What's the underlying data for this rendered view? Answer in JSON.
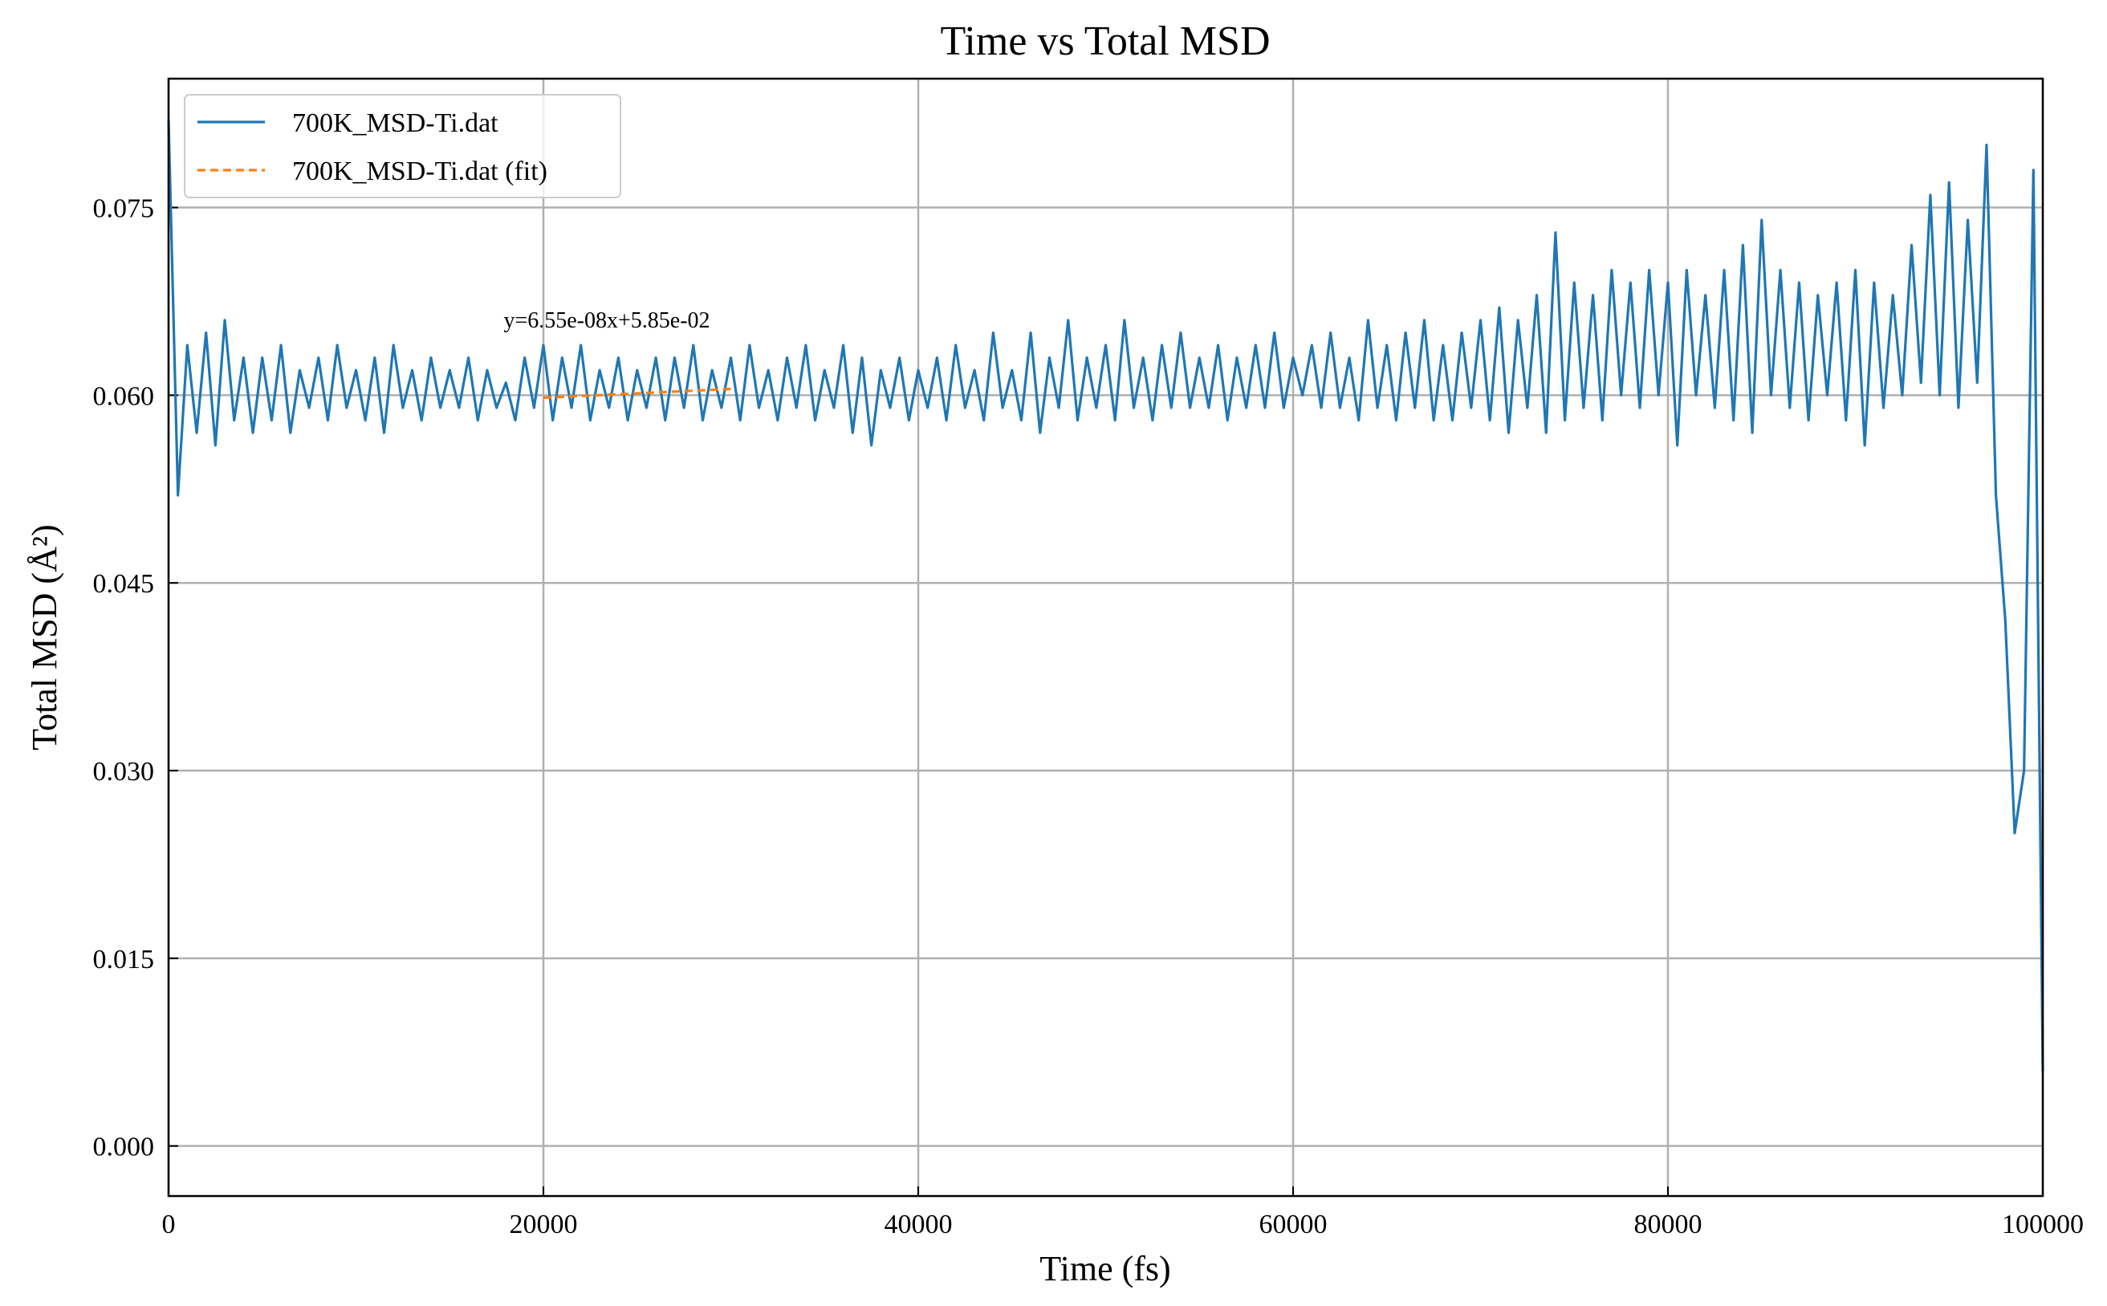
{
  "chart_data": {
    "type": "line",
    "title": "Time vs Total MSD",
    "xlabel": "Time (fs)",
    "ylabel": "Total MSD (Å²)",
    "annotation": "y=6.55e-08x+5.85e-02",
    "xlim": [
      0,
      100000
    ],
    "ylim": [
      -0.004,
      0.0853
    ],
    "xticks": [
      0,
      20000,
      40000,
      60000,
      80000,
      100000
    ],
    "yticks": [
      {
        "value": 0,
        "label": "0.000"
      },
      {
        "value": 0.015,
        "label": "0.015"
      },
      {
        "value": 0.03,
        "label": "0.030"
      },
      {
        "value": 0.045,
        "label": "0.045"
      },
      {
        "value": 0.06,
        "label": "0.060"
      },
      {
        "value": 0.075,
        "label": "0.075"
      }
    ],
    "grid": true,
    "legend": "upper left",
    "series": [
      {
        "name": "700K_MSD-Ti.dat",
        "color": "#1f77b4",
        "style": "solid",
        "x": [
          0,
          500,
          1000,
          1500,
          2000,
          2500,
          3000,
          3500,
          4000,
          4500,
          5000,
          5500,
          6000,
          6500,
          7000,
          7500,
          8000,
          8500,
          9000,
          9500,
          10000,
          10500,
          11000,
          11500,
          12000,
          12500,
          13000,
          13500,
          14000,
          14500,
          15000,
          15500,
          16000,
          16500,
          17000,
          17500,
          18000,
          18500,
          19000,
          19500,
          20000,
          20500,
          21000,
          21500,
          22000,
          22500,
          23000,
          23500,
          24000,
          24500,
          25000,
          25500,
          26000,
          26500,
          27000,
          27500,
          28000,
          28500,
          29000,
          29500,
          30000,
          30500,
          31000,
          31500,
          32000,
          32500,
          33000,
          33500,
          34000,
          34500,
          35000,
          35500,
          36000,
          36500,
          37000,
          37500,
          38000,
          38500,
          39000,
          39500,
          40000,
          40500,
          41000,
          41500,
          42000,
          42500,
          43000,
          43500,
          44000,
          44500,
          45000,
          45500,
          46000,
          46500,
          47000,
          47500,
          48000,
          48500,
          49000,
          49500,
          50000,
          50500,
          51000,
          51500,
          52000,
          52500,
          53000,
          53500,
          54000,
          54500,
          55000,
          55500,
          56000,
          56500,
          57000,
          57500,
          58000,
          58500,
          59000,
          59500,
          60000,
          60500,
          61000,
          61500,
          62000,
          62500,
          63000,
          63500,
          64000,
          64500,
          65000,
          65500,
          66000,
          66500,
          67000,
          67500,
          68000,
          68500,
          69000,
          69500,
          70000,
          70500,
          71000,
          71500,
          72000,
          72500,
          73000,
          73500,
          74000,
          74500,
          75000,
          75500,
          76000,
          76500,
          77000,
          77500,
          78000,
          78500,
          79000,
          79500,
          80000,
          80500,
          81000,
          81500,
          82000,
          82500,
          83000,
          83500,
          84000,
          84500,
          85000,
          85500,
          86000,
          86500,
          87000,
          87500,
          88000,
          88500,
          89000,
          89500,
          90000,
          90500,
          91000,
          91500,
          92000,
          92500,
          93000,
          93500,
          94000,
          94500,
          95000,
          95500,
          96000,
          96500,
          97000,
          97500,
          98000,
          98500,
          99000,
          99500,
          100000
        ],
        "values": [
          0.082,
          0.052,
          0.064,
          0.057,
          0.065,
          0.056,
          0.066,
          0.058,
          0.063,
          0.057,
          0.063,
          0.058,
          0.064,
          0.057,
          0.062,
          0.059,
          0.063,
          0.058,
          0.064,
          0.059,
          0.062,
          0.058,
          0.063,
          0.057,
          0.064,
          0.059,
          0.062,
          0.058,
          0.063,
          0.059,
          0.062,
          0.059,
          0.063,
          0.058,
          0.062,
          0.059,
          0.061,
          0.058,
          0.063,
          0.059,
          0.064,
          0.058,
          0.063,
          0.059,
          0.064,
          0.058,
          0.062,
          0.059,
          0.063,
          0.058,
          0.062,
          0.059,
          0.063,
          0.058,
          0.063,
          0.059,
          0.064,
          0.058,
          0.062,
          0.059,
          0.063,
          0.058,
          0.064,
          0.059,
          0.062,
          0.058,
          0.063,
          0.059,
          0.064,
          0.058,
          0.062,
          0.059,
          0.064,
          0.057,
          0.063,
          0.056,
          0.062,
          0.059,
          0.063,
          0.058,
          0.062,
          0.059,
          0.063,
          0.058,
          0.064,
          0.059,
          0.062,
          0.058,
          0.065,
          0.059,
          0.062,
          0.058,
          0.065,
          0.057,
          0.063,
          0.059,
          0.066,
          0.058,
          0.063,
          0.059,
          0.064,
          0.058,
          0.066,
          0.059,
          0.063,
          0.058,
          0.064,
          0.059,
          0.065,
          0.059,
          0.063,
          0.059,
          0.064,
          0.058,
          0.063,
          0.059,
          0.064,
          0.059,
          0.065,
          0.059,
          0.063,
          0.06,
          0.064,
          0.059,
          0.065,
          0.059,
          0.063,
          0.058,
          0.066,
          0.059,
          0.064,
          0.058,
          0.065,
          0.059,
          0.066,
          0.058,
          0.064,
          0.058,
          0.065,
          0.059,
          0.066,
          0.058,
          0.067,
          0.057,
          0.066,
          0.059,
          0.068,
          0.057,
          0.073,
          0.058,
          0.069,
          0.059,
          0.068,
          0.058,
          0.07,
          0.06,
          0.069,
          0.059,
          0.07,
          0.06,
          0.069,
          0.056,
          0.07,
          0.06,
          0.068,
          0.059,
          0.07,
          0.058,
          0.072,
          0.057,
          0.074,
          0.06,
          0.07,
          0.059,
          0.069,
          0.058,
          0.068,
          0.06,
          0.069,
          0.058,
          0.07,
          0.056,
          0.069,
          0.059,
          0.068,
          0.06,
          0.072,
          0.061,
          0.076,
          0.06,
          0.077,
          0.059,
          0.074,
          0.061,
          0.08,
          0.052,
          0.042,
          0.025,
          0.03,
          0.078,
          0.006
        ]
      },
      {
        "name": "700K_MSD-Ti.dat (fit)",
        "color": "#ff7f0e",
        "style": "dashed",
        "x": [
          20000,
          30000
        ],
        "values": [
          0.0598,
          0.0605
        ]
      }
    ]
  }
}
